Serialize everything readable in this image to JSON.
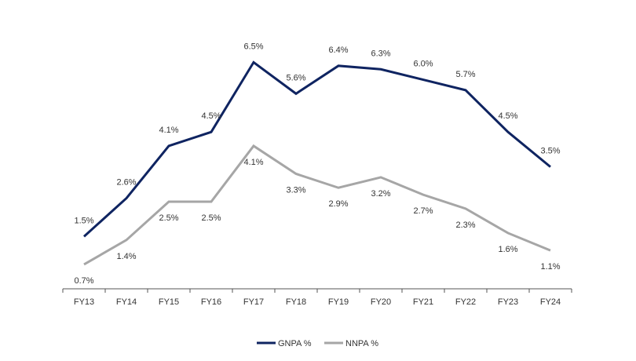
{
  "chart_data": {
    "type": "line",
    "title": "",
    "xlabel": "",
    "ylabel": "",
    "categories": [
      "FY13",
      "FY14",
      "FY15",
      "FY16",
      "FY17",
      "FY18",
      "FY19",
      "FY20",
      "FY21",
      "FY22",
      "FY23",
      "FY24"
    ],
    "series": [
      {
        "name": "GNPA %",
        "color": "#0f2461",
        "values": [
          1.5,
          2.6,
          4.1,
          4.5,
          6.5,
          5.6,
          6.4,
          6.3,
          6.0,
          5.7,
          4.5,
          3.5
        ],
        "labels": [
          "1.5%",
          "2.6%",
          "4.1%",
          "4.5%",
          "6.5%",
          "5.6%",
          "6.4%",
          "6.3%",
          "6.0%",
          "5.7%",
          "4.5%",
          "3.5%"
        ]
      },
      {
        "name": "NNPA %",
        "color": "#a6a6a6",
        "values": [
          0.7,
          1.4,
          2.5,
          2.5,
          4.1,
          3.3,
          2.9,
          3.2,
          2.7,
          2.3,
          1.6,
          1.1
        ],
        "labels": [
          "0.7%",
          "1.4%",
          "2.5%",
          "2.5%",
          "4.1%",
          "3.3%",
          "2.9%",
          "3.2%",
          "2.7%",
          "2.3%",
          "1.6%",
          "1.1%"
        ]
      }
    ],
    "ylim": [
      0,
      7.5
    ],
    "grid": false,
    "legend": "bottom-center"
  }
}
